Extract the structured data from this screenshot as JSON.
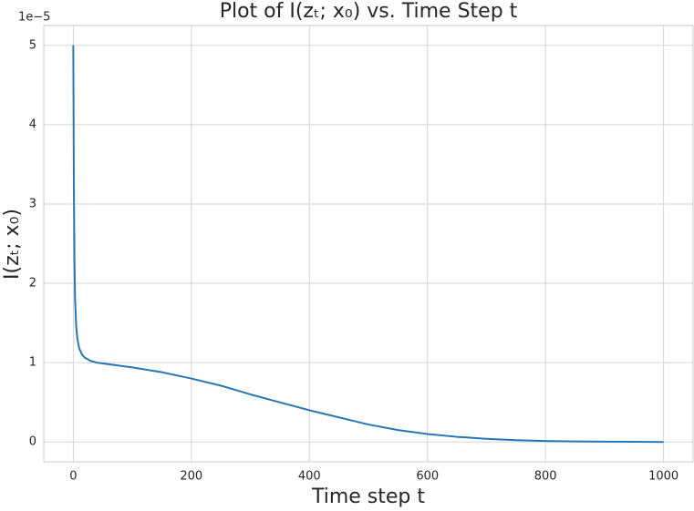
{
  "chart_data": {
    "type": "line",
    "title": "Plot of I(zₜ; x₀) vs. Time Step t",
    "xlabel": "Time step t",
    "ylabel": "I(zₜ; x₀)",
    "y_offset_label": "1e−5",
    "x": [
      0,
      1,
      2,
      3,
      5,
      7,
      10,
      15,
      20,
      30,
      40,
      60,
      80,
      100,
      150,
      200,
      250,
      300,
      350,
      400,
      450,
      500,
      550,
      600,
      650,
      700,
      750,
      800,
      850,
      900,
      950,
      1000
    ],
    "series": [
      {
        "color": "#2a76b3",
        "values": [
          5,
          3.2,
          2.3,
          1.8,
          1.45,
          1.3,
          1.18,
          1.1,
          1.06,
          1.02,
          1.0,
          0.98,
          0.96,
          0.94,
          0.88,
          0.8,
          0.71,
          0.6,
          0.5,
          0.4,
          0.31,
          0.22,
          0.15,
          0.1,
          0.065,
          0.04,
          0.022,
          0.012,
          0.007,
          0.004,
          0.002,
          0.0
        ]
      }
    ],
    "xlim": [
      -50,
      1050
    ],
    "ylim": [
      -0.25,
      5.25
    ],
    "xticks": [
      0,
      200,
      400,
      600,
      800,
      1000
    ],
    "yticks": [
      0,
      1,
      2,
      3,
      4,
      5
    ],
    "grid": true
  }
}
